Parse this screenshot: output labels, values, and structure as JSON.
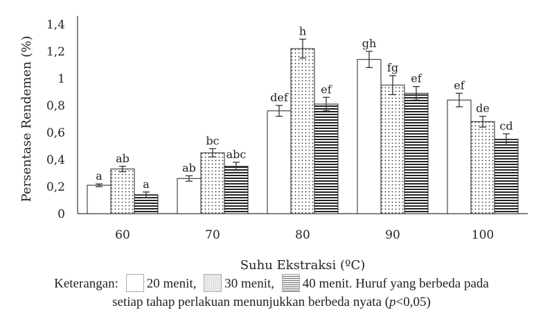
{
  "chart_data": {
    "type": "bar",
    "ylabel": "Persentase Rendemen (%)",
    "xlabel": "Suhu Ekstraksi (ºC)",
    "ylim": [
      0,
      1.4
    ],
    "yticks": [
      "0",
      "0,2",
      "0,4",
      "0,6",
      "0,8",
      "1",
      "1,2",
      "1,4"
    ],
    "categories": [
      "60",
      "70",
      "80",
      "90",
      "100"
    ],
    "series": [
      {
        "name": "20 menit",
        "pattern": "plain",
        "values": [
          0.21,
          0.26,
          0.76,
          1.14,
          0.84
        ],
        "errors": [
          0.01,
          0.02,
          0.04,
          0.06,
          0.05
        ],
        "labels": [
          "a",
          "ab",
          "def",
          "gh",
          "ef"
        ]
      },
      {
        "name": "30 menit",
        "pattern": "dots",
        "values": [
          0.33,
          0.45,
          1.22,
          0.95,
          0.68
        ],
        "errors": [
          0.02,
          0.03,
          0.07,
          0.07,
          0.04
        ],
        "labels": [
          "ab",
          "bc",
          "h",
          "fg",
          "de"
        ]
      },
      {
        "name": "40 menit",
        "pattern": "horizontal-lines",
        "values": [
          0.14,
          0.35,
          0.81,
          0.89,
          0.55
        ],
        "errors": [
          0.02,
          0.03,
          0.05,
          0.05,
          0.04
        ],
        "labels": [
          "a",
          "abc",
          "ef",
          "ef",
          "cd"
        ]
      }
    ],
    "grid": false,
    "legend": "below chart in caption"
  },
  "caption": {
    "prefix": "Keterangan:",
    "legend_1": "20 menit,",
    "legend_2": "30 menit,",
    "legend_3": "40 menit. Huruf yang berbeda pada",
    "line2_a": "setiap  tahap perlakuan  menunjukkan berbeda  nyata (",
    "line2_p": "p",
    "line2_b": "<0,05)"
  }
}
